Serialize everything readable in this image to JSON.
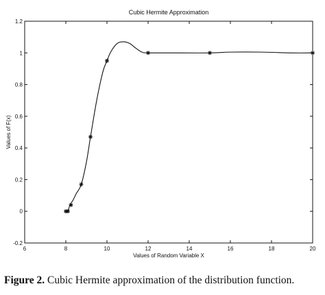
{
  "chart_data": {
    "type": "line",
    "title": "Cubic Hermite Approximation",
    "xlabel": "Values of Random Variable X",
    "ylabel": "Values of F(x)",
    "xlim": [
      6,
      20
    ],
    "ylim": [
      -0.2,
      1.2
    ],
    "xticks": [
      6,
      8,
      10,
      12,
      14,
      16,
      18,
      20
    ],
    "yticks": [
      -0.2,
      0,
      0.2,
      0.4,
      0.6,
      0.8,
      1,
      1.2
    ],
    "grid": false,
    "series": [
      {
        "marker": "*",
        "color": "#111111",
        "curve": [
          [
            8.0,
            0.0
          ],
          [
            8.1,
            0.0
          ],
          [
            8.2,
            0.04
          ],
          [
            8.35,
            0.07
          ],
          [
            8.5,
            0.11
          ],
          [
            8.75,
            0.17
          ],
          [
            9.0,
            0.31
          ],
          [
            9.2,
            0.47
          ],
          [
            9.5,
            0.7
          ],
          [
            9.8,
            0.88
          ],
          [
            10.0,
            0.95
          ],
          [
            10.2,
            1.01
          ],
          [
            10.5,
            1.06
          ],
          [
            10.8,
            1.07
          ],
          [
            11.1,
            1.06
          ],
          [
            11.4,
            1.03
          ],
          [
            11.7,
            1.005
          ],
          [
            12.0,
            1.0
          ],
          [
            13.0,
            1.0
          ],
          [
            15.0,
            1.0
          ],
          [
            16.0,
            1.005
          ],
          [
            17.5,
            1.005
          ],
          [
            19.0,
            1.0
          ],
          [
            20.0,
            1.0
          ]
        ],
        "points": [
          [
            8.0,
            0.0
          ],
          [
            8.1,
            0.0
          ],
          [
            8.25,
            0.04
          ],
          [
            8.75,
            0.17
          ],
          [
            9.2,
            0.47
          ],
          [
            10.0,
            0.95
          ],
          [
            12.0,
            1.0
          ],
          [
            15.0,
            1.0
          ],
          [
            20.0,
            1.0
          ]
        ]
      }
    ]
  },
  "caption": {
    "label": "Figure 2.",
    "text": " Cubic Hermite approximation of the distribution function."
  }
}
